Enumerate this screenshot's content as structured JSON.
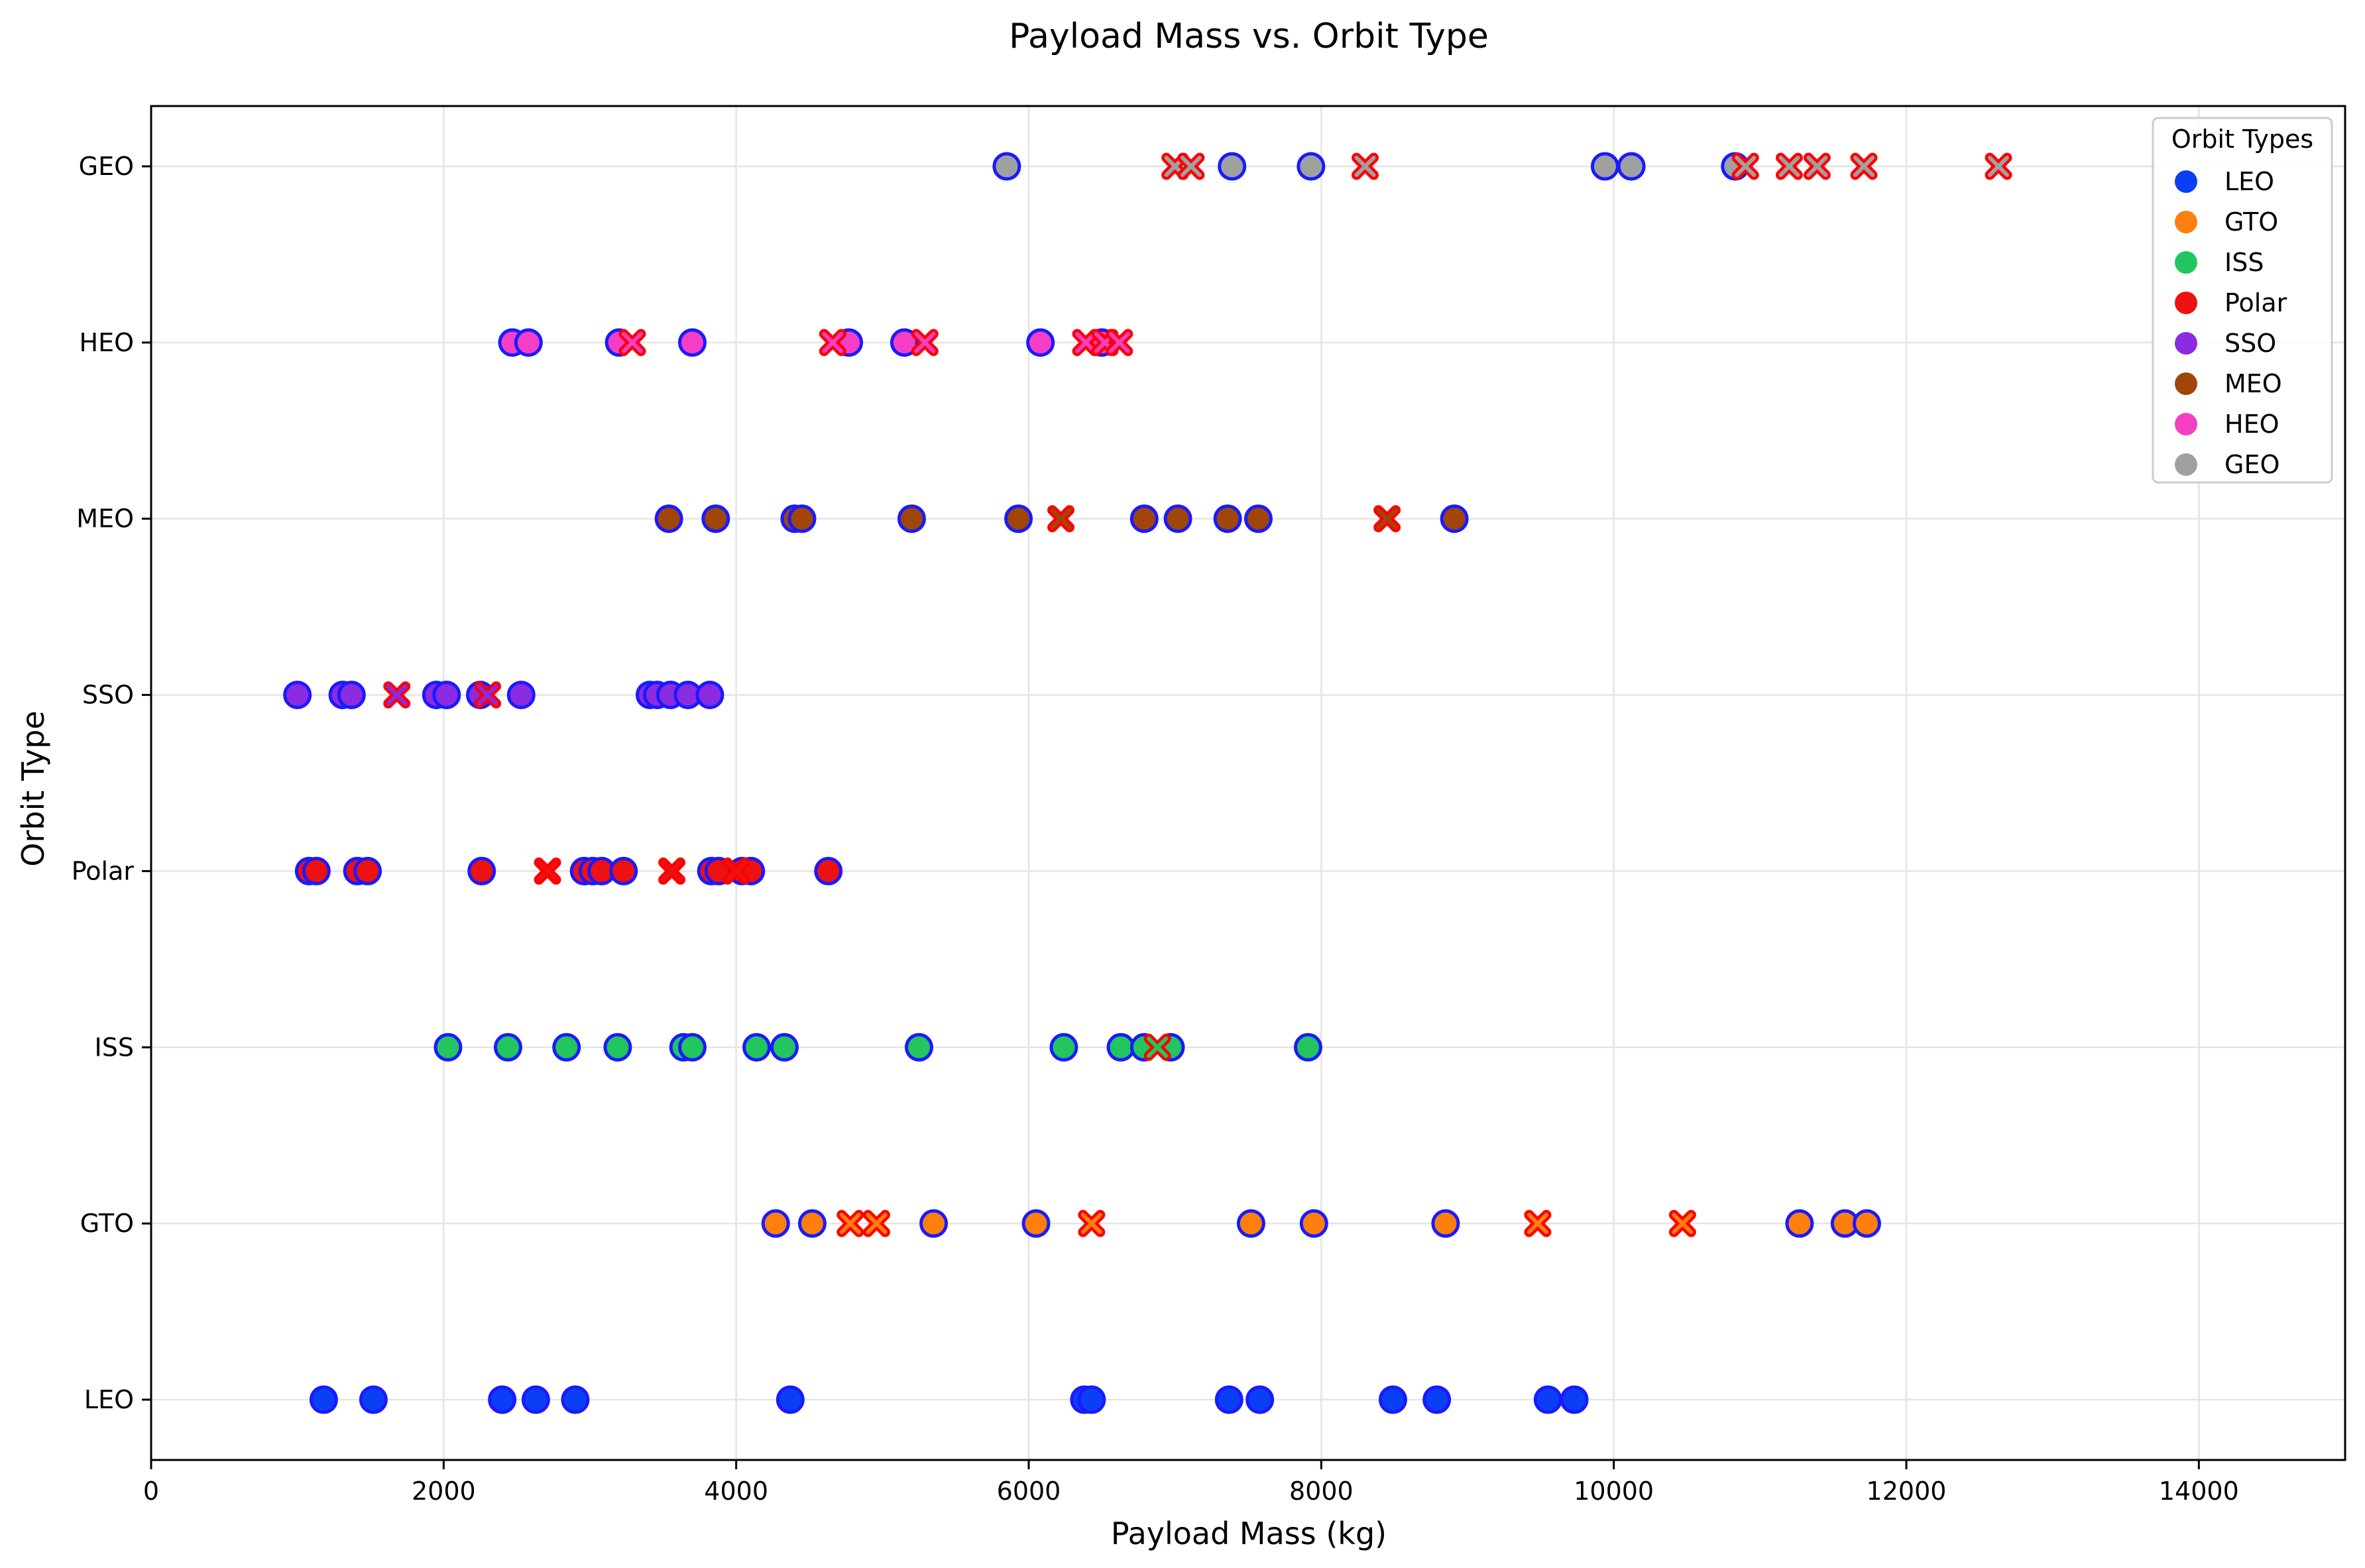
{
  "chart_data": {
    "type": "scatter",
    "title": "Payload Mass vs. Orbit Type",
    "xlabel": "Payload Mass (kg)",
    "ylabel": "Orbit Type",
    "xlim": [
      0,
      15000
    ],
    "xticks": [
      0,
      2000,
      4000,
      6000,
      8000,
      10000,
      12000,
      14000
    ],
    "xtick_labels": [
      "0",
      "2000",
      "4000",
      "6000",
      "8000",
      "10000",
      "12000",
      "14000"
    ],
    "categories": [
      "LEO",
      "GTO",
      "ISS",
      "Polar",
      "SSO",
      "MEO",
      "HEO",
      "GEO"
    ],
    "grid": true,
    "legend": {
      "title": "Orbit Types",
      "placement": "top-right",
      "entries": [
        {
          "label": "LEO",
          "color": "#0b3ff5"
        },
        {
          "label": "GTO",
          "color": "#ff7f0e"
        },
        {
          "label": "ISS",
          "color": "#22c55e"
        },
        {
          "label": "Polar",
          "color": "#ee1111"
        },
        {
          "label": "SSO",
          "color": "#8b2be2"
        },
        {
          "label": "MEO",
          "color": "#a0460a"
        },
        {
          "label": "HEO",
          "color": "#f43fc4"
        },
        {
          "label": "GEO",
          "color": "#a0a0a0"
        }
      ]
    },
    "marker_edge_success": "#1a1aff",
    "marker_edge_failure": "#ff0000",
    "series": [
      {
        "name": "LEO",
        "color": "#0b3ff5",
        "success": [
          1180,
          1520,
          2400,
          2630,
          2900,
          4370,
          6380,
          6430,
          7370,
          7580,
          8490,
          8790,
          9550,
          9730
        ],
        "failure": []
      },
      {
        "name": "GTO",
        "color": "#ff7f0e",
        "success": [
          4270,
          4520,
          5350,
          6050,
          7520,
          7950,
          8850,
          11270,
          11580,
          11730
        ],
        "failure": [
          4780,
          4960,
          6430,
          9480,
          10470
        ]
      },
      {
        "name": "ISS",
        "color": "#22c55e",
        "success": [
          2030,
          2440,
          2840,
          3190,
          3640,
          3700,
          4140,
          4330,
          5250,
          6240,
          6630,
          6790,
          6970,
          7910
        ],
        "failure": [
          6880
        ]
      },
      {
        "name": "Polar",
        "color": "#ee1111",
        "success": [
          1080,
          1130,
          1410,
          1480,
          2260,
          2960,
          3020,
          3080,
          3230,
          3830,
          3880,
          4040,
          4100,
          4630
        ],
        "failure": [
          2710,
          3560,
          4000
        ]
      },
      {
        "name": "SSO",
        "color": "#8b2be2",
        "success": [
          1000,
          1310,
          1370,
          1950,
          2020,
          2250,
          2530,
          3410,
          3460,
          3550,
          3670,
          3820
        ],
        "failure": [
          1680,
          2300
        ]
      },
      {
        "name": "MEO",
        "color": "#a0460a",
        "success": [
          3540,
          3860,
          4400,
          4450,
          5200,
          5930,
          6790,
          7020,
          7360,
          7570,
          8910
        ],
        "failure": [
          6220,
          8450
        ]
      },
      {
        "name": "HEO",
        "color": "#f43fc4",
        "success": [
          2470,
          2580,
          3200,
          3700,
          4770,
          5150,
          6080,
          6500
        ],
        "failure": [
          3290,
          4660,
          5290,
          6390,
          6520,
          6620
        ]
      },
      {
        "name": "GEO",
        "color": "#a0a0a0",
        "success": [
          5850,
          7390,
          7930,
          9940,
          10120,
          10830
        ],
        "failure": [
          7000,
          7110,
          8300,
          10900,
          11200,
          11390,
          11710,
          12630
        ]
      }
    ]
  }
}
